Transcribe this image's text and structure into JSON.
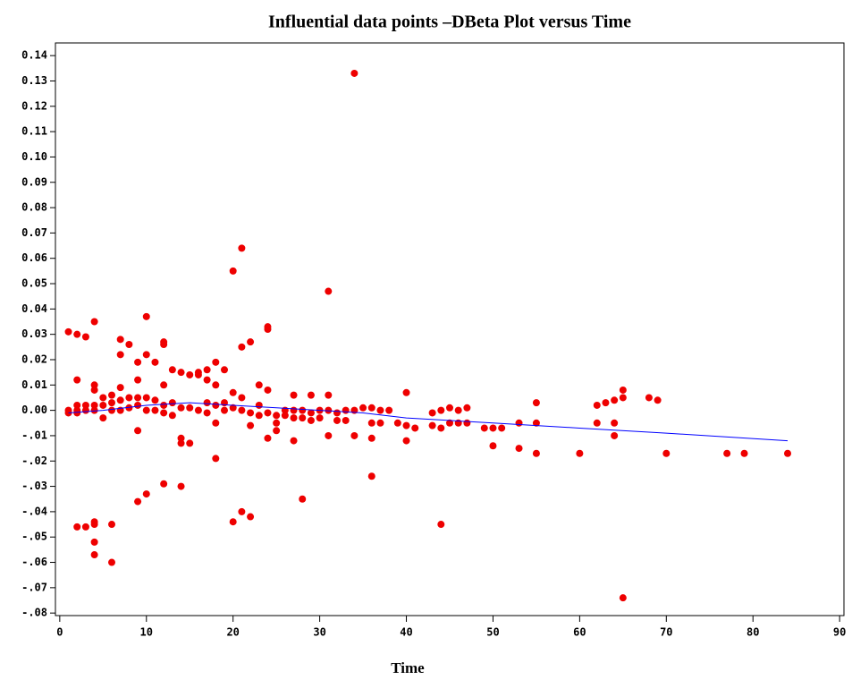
{
  "chart_data": {
    "type": "scatter",
    "title": "Influential data points –DBeta Plot versus Time",
    "x_label": "Time",
    "xlim": [
      -0.5,
      90.5
    ],
    "ylim": [
      -0.081,
      0.145
    ],
    "xticks": [
      0,
      10,
      20,
      30,
      40,
      50,
      60,
      70,
      80,
      90
    ],
    "yticks": [
      {
        "value": 0.14,
        "label": "0.14"
      },
      {
        "value": 0.13,
        "label": "0.13"
      },
      {
        "value": 0.12,
        "label": "0.12"
      },
      {
        "value": 0.11,
        "label": "0.11"
      },
      {
        "value": 0.1,
        "label": "0.10"
      },
      {
        "value": 0.09,
        "label": "0.09"
      },
      {
        "value": 0.08,
        "label": "0.08"
      },
      {
        "value": 0.07,
        "label": "0.07"
      },
      {
        "value": 0.06,
        "label": "0.06"
      },
      {
        "value": 0.05,
        "label": "0.05"
      },
      {
        "value": 0.04,
        "label": "0.04"
      },
      {
        "value": 0.03,
        "label": "0.03"
      },
      {
        "value": 0.02,
        "label": "0.02"
      },
      {
        "value": 0.01,
        "label": "0.01"
      },
      {
        "value": 0,
        "label": "0.00"
      },
      {
        "value": -0.01,
        "label": "-.01"
      },
      {
        "value": -0.02,
        "label": "-.02"
      },
      {
        "value": -0.03,
        "label": "-.03"
      },
      {
        "value": -0.04,
        "label": "-.04"
      },
      {
        "value": -0.05,
        "label": "-.05"
      },
      {
        "value": -0.06,
        "label": "-.06"
      },
      {
        "value": -0.07,
        "label": "-.07"
      },
      {
        "value": -0.08,
        "label": "-.08"
      }
    ],
    "series": [
      {
        "type": "scatter",
        "color": "#ee0000",
        "x": [
          1,
          1,
          1,
          2,
          2,
          2,
          2,
          2,
          2,
          3,
          3,
          3,
          3,
          4,
          4,
          4,
          4,
          4,
          4,
          4,
          4,
          4,
          5,
          5,
          5,
          6,
          6,
          6,
          6,
          6,
          7,
          7,
          7,
          7,
          7,
          8,
          8,
          8,
          9,
          9,
          9,
          9,
          9,
          9,
          10,
          10,
          10,
          10,
          10,
          11,
          11,
          11,
          12,
          12,
          12,
          12,
          12,
          12,
          13,
          13,
          13,
          14,
          14,
          14,
          14,
          14,
          15,
          15,
          15,
          16,
          16,
          16,
          17,
          17,
          17,
          17,
          18,
          18,
          18,
          18,
          18,
          19,
          19,
          19,
          20,
          20,
          20,
          20,
          21,
          21,
          21,
          21,
          21,
          22,
          22,
          22,
          22,
          23,
          23,
          23,
          24,
          24,
          24,
          24,
          24,
          25,
          25,
          25,
          26,
          26,
          27,
          27,
          27,
          27,
          28,
          28,
          28,
          29,
          29,
          29,
          30,
          30,
          31,
          31,
          31,
          31,
          32,
          32,
          33,
          33,
          34,
          34,
          34,
          35,
          36,
          36,
          36,
          36,
          37,
          37,
          38,
          39,
          40,
          40,
          40,
          41,
          43,
          43,
          44,
          44,
          44,
          45,
          45,
          46,
          46,
          47,
          47,
          49,
          50,
          50,
          51,
          53,
          53,
          55,
          55,
          55,
          60,
          62,
          62,
          63,
          64,
          64,
          64,
          65,
          65,
          65,
          68,
          69,
          70,
          77,
          79,
          84
        ],
        "values": [
          0.031,
          0.0,
          -0.001,
          0.03,
          0.012,
          0.002,
          0.0,
          -0.001,
          -0.046,
          0.029,
          0.002,
          0.0,
          -0.046,
          0.035,
          0.01,
          0.008,
          0.002,
          0.0,
          -0.044,
          -0.045,
          -0.052,
          -0.057,
          0.005,
          0.002,
          -0.003,
          0.006,
          0.003,
          0.0,
          -0.045,
          -0.06,
          0.028,
          0.022,
          0.009,
          0.004,
          0.0,
          0.026,
          0.005,
          0.001,
          0.019,
          0.012,
          0.005,
          0.002,
          -0.008,
          -0.036,
          0.037,
          0.022,
          0.005,
          0.0,
          -0.033,
          0.019,
          0.004,
          0.0,
          0.027,
          0.026,
          0.01,
          0.002,
          -0.001,
          -0.029,
          0.016,
          0.003,
          -0.002,
          0.015,
          0.001,
          -0.011,
          -0.013,
          -0.03,
          0.014,
          0.001,
          -0.013,
          0.015,
          0.014,
          0.0,
          0.016,
          0.012,
          0.003,
          -0.001,
          0.019,
          0.01,
          0.002,
          -0.005,
          -0.019,
          0.016,
          0.003,
          0.0,
          0.055,
          0.007,
          0.001,
          -0.044,
          0.064,
          0.025,
          0.005,
          0.0,
          -0.04,
          0.027,
          -0.001,
          -0.006,
          -0.042,
          0.01,
          0.002,
          -0.002,
          0.033,
          0.032,
          0.008,
          -0.001,
          -0.011,
          -0.002,
          -0.005,
          -0.008,
          0.0,
          -0.002,
          0.006,
          0.0,
          -0.003,
          -0.012,
          0.0,
          -0.003,
          -0.035,
          0.006,
          -0.001,
          -0.004,
          0.0,
          -0.003,
          0.047,
          0.006,
          0.0,
          -0.01,
          -0.001,
          -0.004,
          0.0,
          -0.004,
          0.133,
          0.0,
          -0.01,
          0.001,
          0.001,
          -0.005,
          -0.011,
          -0.026,
          0.0,
          -0.005,
          0.0,
          -0.005,
          0.007,
          -0.006,
          -0.012,
          -0.007,
          -0.001,
          -0.006,
          0.0,
          -0.007,
          -0.045,
          0.001,
          -0.005,
          0.0,
          -0.005,
          0.001,
          -0.005,
          -0.007,
          -0.007,
          -0.014,
          -0.007,
          -0.005,
          -0.015,
          0.003,
          -0.005,
          -0.017,
          -0.017,
          0.002,
          -0.005,
          0.003,
          0.004,
          -0.005,
          -0.01,
          0.008,
          0.005,
          -0.074,
          0.005,
          0.004,
          -0.017,
          -0.017,
          -0.017,
          -0.017
        ]
      },
      {
        "type": "line",
        "color": "#0000ff",
        "x": [
          1,
          5,
          10,
          15,
          20,
          25,
          30,
          35,
          40,
          50,
          60,
          70,
          84
        ],
        "values": [
          -0.001,
          0.0,
          0.002,
          0.003,
          0.002,
          0.001,
          0.0,
          -0.001,
          -0.003,
          -0.005,
          -0.007,
          -0.009,
          -0.012
        ]
      }
    ]
  }
}
